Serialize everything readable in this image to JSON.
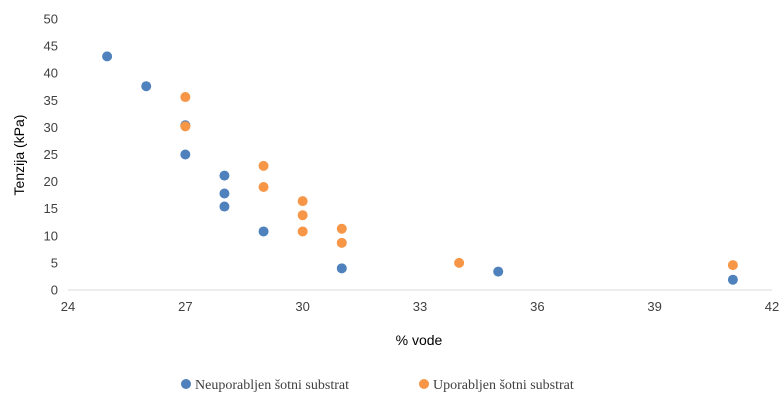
{
  "chart_data": {
    "type": "scatter",
    "xlabel": "% vode",
    "ylabel": "Tenzija (kPa)",
    "xlim": [
      24,
      42
    ],
    "ylim": [
      0,
      50
    ],
    "x_ticks": [
      24,
      27,
      30,
      33,
      36,
      39,
      42
    ],
    "y_ticks": [
      0,
      5,
      10,
      15,
      20,
      25,
      30,
      35,
      40,
      45,
      50
    ],
    "grid": false,
    "legend_position": "bottom",
    "series": [
      {
        "name": "Neuporabljen šotni substrat",
        "color": "#4F81BD",
        "points": [
          [
            25,
            43.1
          ],
          [
            26,
            37.6
          ],
          [
            27,
            30.4
          ],
          [
            27,
            25.0
          ],
          [
            28,
            21.1
          ],
          [
            28,
            17.8
          ],
          [
            28,
            15.4
          ],
          [
            29,
            10.8
          ],
          [
            31,
            4.0
          ],
          [
            35,
            3.4
          ],
          [
            41,
            1.9
          ]
        ]
      },
      {
        "name": "Uporabljen šotni substrat",
        "color": "#F79646",
        "points": [
          [
            27,
            35.6
          ],
          [
            27,
            30.2
          ],
          [
            29,
            22.9
          ],
          [
            29,
            19.0
          ],
          [
            30,
            16.4
          ],
          [
            30,
            13.8
          ],
          [
            30,
            10.8
          ],
          [
            31,
            11.3
          ],
          [
            31,
            8.7
          ],
          [
            34,
            5.0
          ],
          [
            41,
            4.6
          ]
        ]
      }
    ]
  }
}
